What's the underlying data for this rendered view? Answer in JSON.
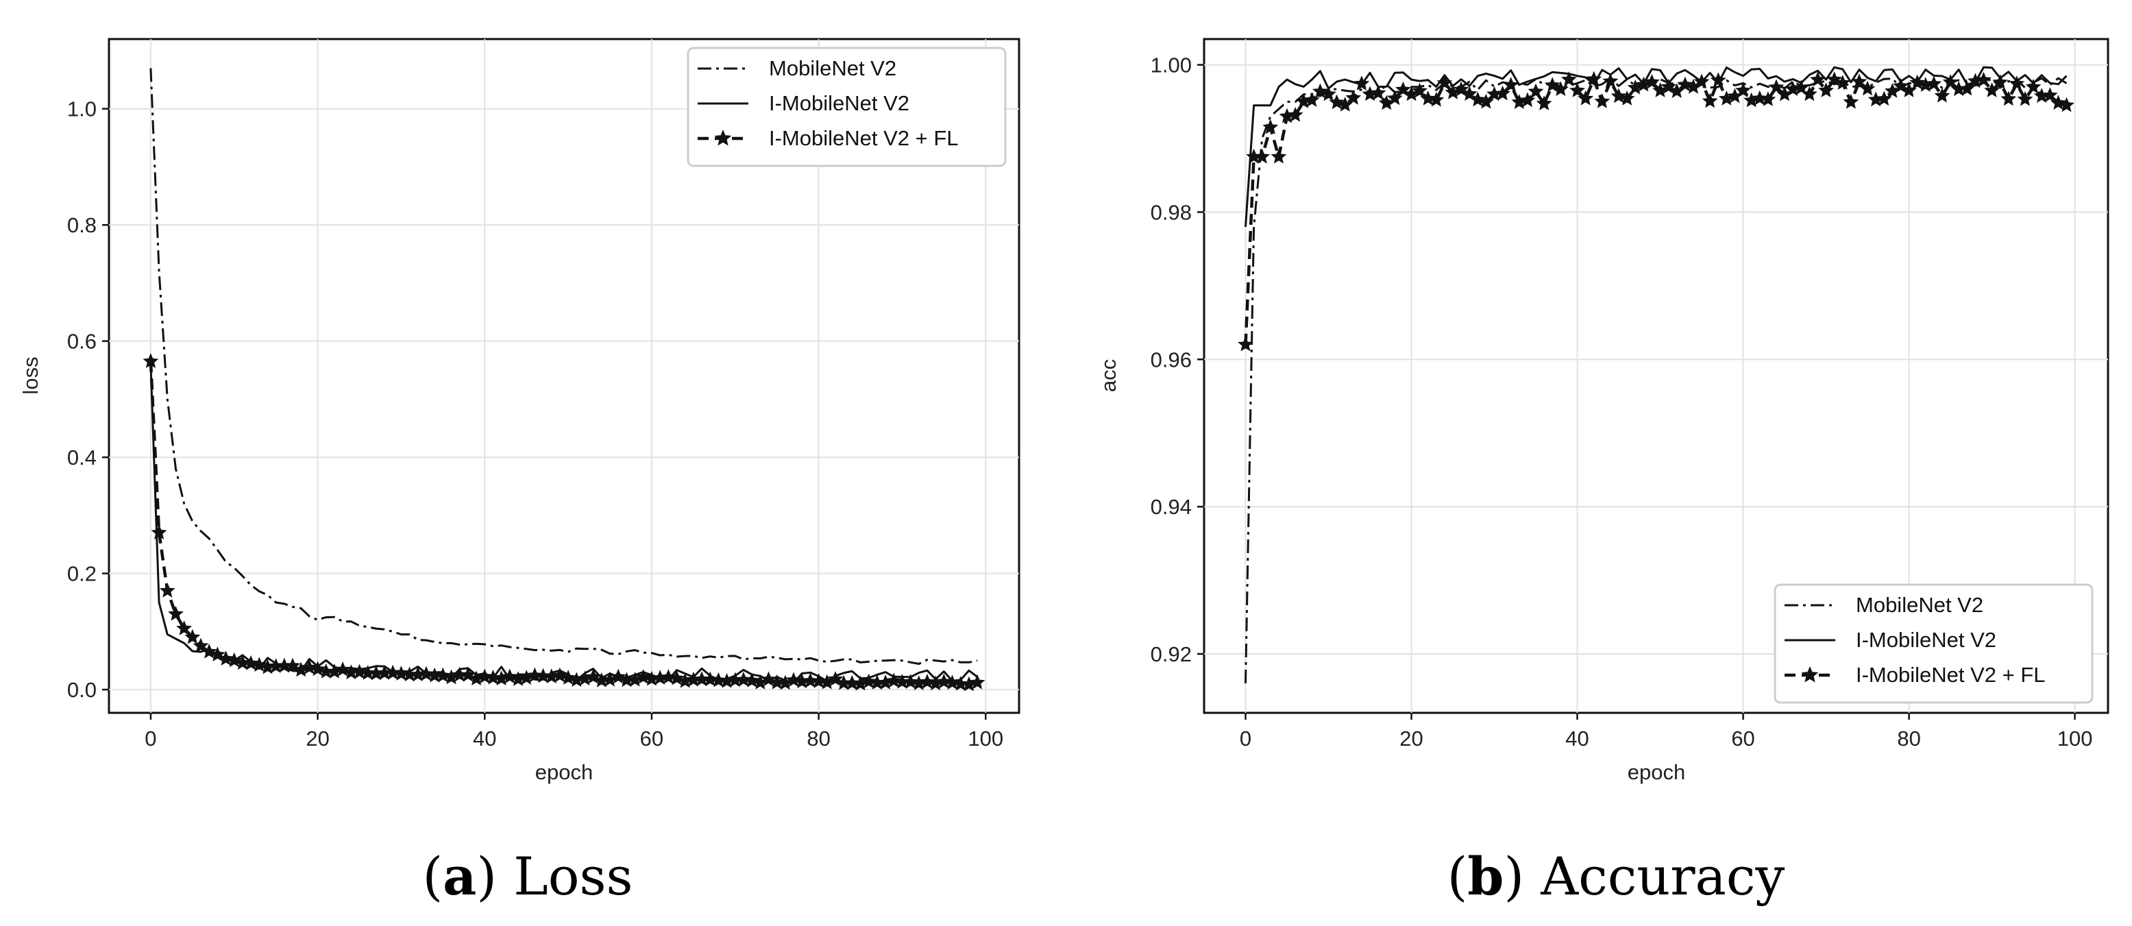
{
  "chart_data": [
    {
      "id": "loss",
      "type": "line",
      "caption_letter": "a",
      "caption_text": "Loss",
      "title": "",
      "xlabel": "epoch",
      "ylabel": "loss",
      "xlim": [
        -5,
        104
      ],
      "ylim": [
        -0.04,
        1.12
      ],
      "xticks": [
        0,
        20,
        40,
        60,
        80,
        100
      ],
      "yticks": [
        0.0,
        0.2,
        0.4,
        0.6,
        0.8,
        1.0
      ],
      "xtick_labels": [
        "0",
        "20",
        "40",
        "60",
        "80",
        "100"
      ],
      "ytick_labels": [
        "0.0",
        "0.2",
        "0.4",
        "0.6",
        "0.8",
        "1.0"
      ],
      "grid": true,
      "legend_position": "upper-right",
      "series": [
        {
          "name": "MobileNet V2",
          "style": "dashdot",
          "marker": "none",
          "keypoints": [
            [
              0,
              1.07
            ],
            [
              1,
              0.72
            ],
            [
              2,
              0.5
            ],
            [
              3,
              0.38
            ],
            [
              4,
              0.32
            ],
            [
              5,
              0.29
            ],
            [
              7,
              0.26
            ],
            [
              9,
              0.22
            ],
            [
              12,
              0.18
            ],
            [
              15,
              0.15
            ],
            [
              18,
              0.14
            ],
            [
              20,
              0.12
            ],
            [
              22,
              0.125
            ],
            [
              25,
              0.11
            ],
            [
              27,
              0.105
            ],
            [
              30,
              0.095
            ],
            [
              33,
              0.085
            ],
            [
              36,
              0.08
            ],
            [
              38,
              0.078
            ],
            [
              40,
              0.078
            ],
            [
              42,
              0.076
            ],
            [
              45,
              0.07
            ],
            [
              48,
              0.067
            ],
            [
              50,
              0.065
            ],
            [
              52,
              0.07
            ],
            [
              55,
              0.062
            ],
            [
              58,
              0.068
            ],
            [
              60,
              0.063
            ],
            [
              62,
              0.06
            ],
            [
              65,
              0.058
            ],
            [
              68,
              0.055
            ],
            [
              70,
              0.058
            ],
            [
              72,
              0.054
            ],
            [
              75,
              0.055
            ],
            [
              78,
              0.052
            ],
            [
              80,
              0.05
            ],
            [
              83,
              0.052
            ],
            [
              86,
              0.048
            ],
            [
              88,
              0.05
            ],
            [
              91,
              0.047
            ],
            [
              94,
              0.05
            ],
            [
              97,
              0.047
            ],
            [
              99,
              0.05
            ]
          ],
          "noise_amp": 0.004,
          "noise_seed": 3
        },
        {
          "name": "I-MobileNet V2",
          "style": "solid",
          "marker": "none",
          "keypoints": [
            [
              0,
              0.56
            ],
            [
              1,
              0.15
            ],
            [
              2,
              0.095
            ],
            [
              4,
              0.08
            ],
            [
              6,
              0.065
            ],
            [
              8,
              0.055
            ],
            [
              10,
              0.05
            ],
            [
              12,
              0.048
            ],
            [
              15,
              0.045
            ],
            [
              20,
              0.04
            ],
            [
              25,
              0.035
            ],
            [
              30,
              0.032
            ],
            [
              35,
              0.03
            ],
            [
              40,
              0.028
            ],
            [
              50,
              0.026
            ],
            [
              60,
              0.025
            ],
            [
              70,
              0.024
            ],
            [
              80,
              0.023
            ],
            [
              90,
              0.022
            ],
            [
              99,
              0.022
            ]
          ],
          "noise_amp": 0.012,
          "noise_seed": 7
        },
        {
          "name": "I-MobileNet V2 + FL",
          "style": "dashed",
          "marker": "star",
          "keypoints": [
            [
              0,
              0.565
            ],
            [
              1,
              0.27
            ],
            [
              2,
              0.17
            ],
            [
              3,
              0.13
            ],
            [
              4,
              0.105
            ],
            [
              5,
              0.09
            ],
            [
              6,
              0.075
            ],
            [
              7,
              0.065
            ],
            [
              8,
              0.06
            ],
            [
              10,
              0.05
            ],
            [
              12,
              0.045
            ],
            [
              15,
              0.04
            ],
            [
              20,
              0.035
            ],
            [
              25,
              0.03
            ],
            [
              30,
              0.027
            ],
            [
              35,
              0.024
            ],
            [
              40,
              0.022
            ],
            [
              50,
              0.02
            ],
            [
              60,
              0.018
            ],
            [
              70,
              0.016
            ],
            [
              80,
              0.014
            ],
            [
              90,
              0.013
            ],
            [
              99,
              0.012
            ]
          ],
          "noise_amp": 0.004,
          "noise_seed": 11
        }
      ]
    },
    {
      "id": "accuracy",
      "type": "line",
      "caption_letter": "b",
      "caption_text": "Accuracy",
      "title": "",
      "xlabel": "epoch",
      "ylabel": "acc",
      "xlim": [
        -5,
        104
      ],
      "ylim": [
        0.912,
        1.0035
      ],
      "xticks": [
        0,
        20,
        40,
        60,
        80,
        100
      ],
      "yticks": [
        0.92,
        0.94,
        0.96,
        0.98,
        1.0
      ],
      "xtick_labels": [
        "0",
        "20",
        "40",
        "60",
        "80",
        "100"
      ],
      "ytick_labels": [
        "0.92",
        "0.94",
        "0.96",
        "0.98",
        "1.00"
      ],
      "grid": true,
      "legend_position": "lower-right",
      "series": [
        {
          "name": "MobileNet V2",
          "style": "dashdot",
          "marker": "none",
          "keypoints": [
            [
              0,
              0.916
            ],
            [
              1,
              0.978
            ],
            [
              2,
              0.99
            ],
            [
              3,
              0.993
            ],
            [
              5,
              0.995
            ],
            [
              8,
              0.996
            ],
            [
              12,
              0.9965
            ],
            [
              20,
              0.997
            ],
            [
              40,
              0.9975
            ],
            [
              60,
              0.9975
            ],
            [
              80,
              0.9975
            ],
            [
              99,
              0.9975
            ]
          ],
          "noise_amp": 0.0007,
          "noise_seed": 5
        },
        {
          "name": "I-MobileNet V2",
          "style": "solid",
          "marker": "none",
          "keypoints": [
            [
              0,
              0.978
            ],
            [
              1,
              0.9945
            ],
            [
              3,
              0.9945
            ],
            [
              4,
              0.997
            ],
            [
              5,
              0.998
            ],
            [
              8,
              0.998
            ],
            [
              12,
              0.998
            ],
            [
              20,
              0.998
            ],
            [
              40,
              0.9985
            ],
            [
              60,
              0.9985
            ],
            [
              80,
              0.9985
            ],
            [
              99,
              0.9985
            ]
          ],
          "noise_amp": 0.0012,
          "noise_seed": 9
        },
        {
          "name": "I-MobileNet V2 + FL",
          "style": "dashed",
          "marker": "star",
          "keypoints": [
            [
              0,
              0.962
            ],
            [
              1,
              0.9875
            ],
            [
              2,
              0.9875
            ],
            [
              3,
              0.9915
            ],
            [
              4,
              0.9875
            ],
            [
              5,
              0.993
            ],
            [
              7,
              0.995
            ],
            [
              10,
              0.996
            ],
            [
              15,
              0.996
            ],
            [
              20,
              0.996
            ],
            [
              30,
              0.996
            ],
            [
              40,
              0.9965
            ],
            [
              50,
              0.9965
            ],
            [
              60,
              0.9965
            ],
            [
              70,
              0.9965
            ],
            [
              80,
              0.9965
            ],
            [
              90,
              0.9965
            ],
            [
              99,
              0.9945
            ]
          ],
          "noise_amp": 0.0016,
          "noise_seed": 13
        }
      ]
    }
  ]
}
